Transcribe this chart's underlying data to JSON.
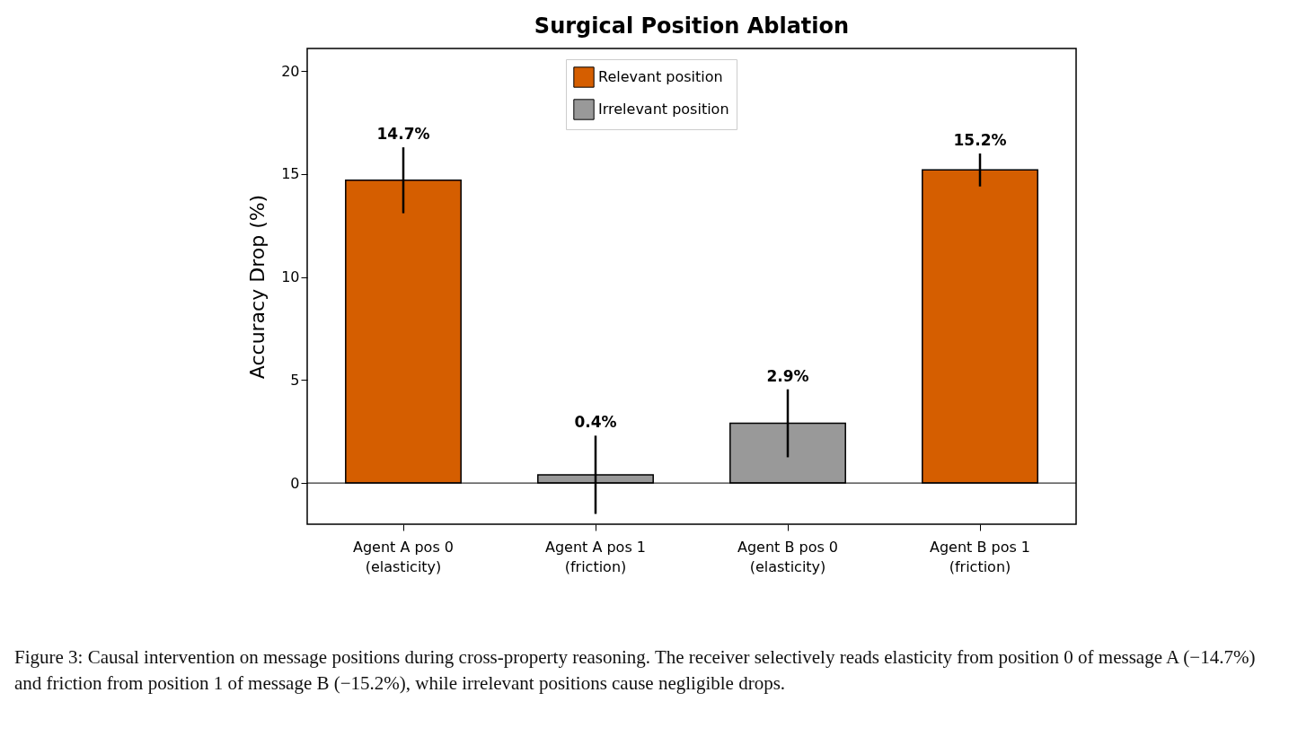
{
  "chart_data": {
    "type": "bar",
    "title": "Surgical Position Ablation",
    "ylabel": "Accuracy Drop (%)",
    "categories": [
      "Agent A pos 0\n(elasticity)",
      "Agent A pos 1\n(friction)",
      "Agent B pos 0\n(elasticity)",
      "Agent B pos 1\n(friction)"
    ],
    "series": [
      {
        "name": "Relevant position",
        "color": "#d55e00",
        "values": [
          14.7,
          null,
          null,
          15.2
        ],
        "errors": [
          1.6,
          null,
          null,
          0.8
        ],
        "value_labels": [
          "14.7%",
          null,
          null,
          "15.2%"
        ]
      },
      {
        "name": "Irrelevant position",
        "color": "#999999",
        "values": [
          null,
          0.4,
          2.9,
          null
        ],
        "errors": [
          null,
          1.9,
          1.65,
          null
        ],
        "value_labels": [
          null,
          "0.4%",
          "2.9%",
          null
        ]
      }
    ],
    "ylim": [
      -2,
      21.1
    ],
    "yticks": [
      0,
      5,
      10,
      15,
      20
    ],
    "ref_lines": [
      {
        "axis": "y",
        "value": 0,
        "color": "#000000"
      }
    ],
    "legend": "top",
    "grid": false,
    "annotations": [
      "Figure 3: Causal intervention on message positions during cross-property reasoning. The receiver selectively reads elasticity from position 0 of message A (−14.7%) and friction from position 1 of message B (−15.2%), while irrelevant positions cause negligible drops."
    ]
  }
}
